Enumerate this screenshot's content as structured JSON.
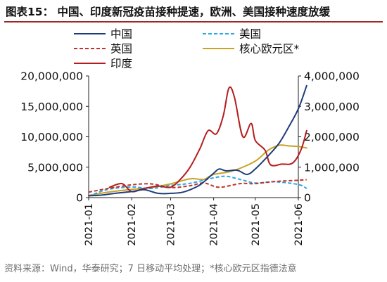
{
  "figure": {
    "title": "图表15：  中国、印度新冠疫苗接种提速，欧洲、美国接种速度放缓",
    "source": "资料来源：Wind，华泰研究；7 日移动平均处理；*核心欧元区指德法意"
  },
  "chart_data": {
    "type": "line",
    "x_ticks": [
      "2021-01",
      "2021-02",
      "2021-03",
      "2021-04",
      "2021-05",
      "2021-06"
    ],
    "y_left": {
      "range": [
        0,
        20000000
      ],
      "ticks": [
        "0",
        "5,000,000",
        "10,000,000",
        "15,000,000",
        "20,000,000"
      ]
    },
    "y_right": {
      "range": [
        0,
        4000000
      ],
      "ticks": [
        "0",
        "1,000,000",
        "2,000,000",
        "3,000,000",
        "4,000,000"
      ]
    },
    "legend_columns": 2,
    "series": [
      {
        "name": "中国",
        "axis": "left",
        "color": "#1f3c7a",
        "dash": "solid",
        "points": [
          [
            "2021-01-01",
            300000
          ],
          [
            "2021-01-10",
            400000
          ],
          [
            "2021-01-20",
            700000
          ],
          [
            "2021-02-01",
            1000000
          ],
          [
            "2021-02-10",
            1300000
          ],
          [
            "2021-02-20",
            700000
          ],
          [
            "2021-03-01",
            700000
          ],
          [
            "2021-03-10",
            900000
          ],
          [
            "2021-03-20",
            1800000
          ],
          [
            "2021-03-25",
            2600000
          ],
          [
            "2021-04-01",
            4000000
          ],
          [
            "2021-04-05",
            4700000
          ],
          [
            "2021-04-10",
            4400000
          ],
          [
            "2021-04-18",
            4500000
          ],
          [
            "2021-04-25",
            3800000
          ],
          [
            "2021-05-01",
            4700000
          ],
          [
            "2021-05-10",
            6800000
          ],
          [
            "2021-05-18",
            8900000
          ],
          [
            "2021-05-25",
            11600000
          ],
          [
            "2021-06-01",
            14600000
          ],
          [
            "2021-06-07",
            18400000
          ]
        ]
      },
      {
        "name": "美国",
        "axis": "right",
        "color": "#26a7e4",
        "dash": "dashed",
        "points": [
          [
            "2021-01-01",
            50000
          ],
          [
            "2021-01-15",
            270000
          ],
          [
            "2021-02-01",
            350000
          ],
          [
            "2021-02-15",
            300000
          ],
          [
            "2021-03-01",
            400000
          ],
          [
            "2021-03-15",
            470000
          ],
          [
            "2021-04-01",
            650000
          ],
          [
            "2021-04-10",
            700000
          ],
          [
            "2021-04-20",
            600000
          ],
          [
            "2021-05-01",
            480000
          ],
          [
            "2021-05-15",
            520000
          ],
          [
            "2021-06-01",
            430000
          ],
          [
            "2021-06-07",
            300000
          ]
        ]
      },
      {
        "name": "英国",
        "axis": "right",
        "color": "#c0322b",
        "dash": "dashed",
        "points": [
          [
            "2021-01-01",
            180000
          ],
          [
            "2021-01-15",
            300000
          ],
          [
            "2021-02-01",
            420000
          ],
          [
            "2021-02-15",
            450000
          ],
          [
            "2021-03-01",
            330000
          ],
          [
            "2021-03-15",
            390000
          ],
          [
            "2021-03-25",
            480000
          ],
          [
            "2021-04-05",
            340000
          ],
          [
            "2021-04-20",
            460000
          ],
          [
            "2021-05-01",
            460000
          ],
          [
            "2021-05-15",
            530000
          ],
          [
            "2021-06-01",
            570000
          ],
          [
            "2021-06-07",
            590000
          ]
        ]
      },
      {
        "name": "核心欧元区*",
        "axis": "right",
        "color": "#c9a227",
        "dash": "solid",
        "points": [
          [
            "2021-01-01",
            70000
          ],
          [
            "2021-01-15",
            180000
          ],
          [
            "2021-02-01",
            270000
          ],
          [
            "2021-02-15",
            330000
          ],
          [
            "2021-03-01",
            450000
          ],
          [
            "2021-03-15",
            620000
          ],
          [
            "2021-03-25",
            600000
          ],
          [
            "2021-04-01",
            760000
          ],
          [
            "2021-04-15",
            880000
          ],
          [
            "2021-05-01",
            1200000
          ],
          [
            "2021-05-10",
            1550000
          ],
          [
            "2021-05-18",
            1720000
          ],
          [
            "2021-05-25",
            1700000
          ],
          [
            "2021-06-01",
            1680000
          ],
          [
            "2021-06-07",
            1630000
          ]
        ]
      },
      {
        "name": "印度",
        "axis": "left",
        "color": "#b41e1e",
        "dash": "solid",
        "points": [
          [
            "2021-01-16",
            1700000
          ],
          [
            "2021-01-25",
            2300000
          ],
          [
            "2021-02-01",
            1000000
          ],
          [
            "2021-02-10",
            1500000
          ],
          [
            "2021-02-20",
            1900000
          ],
          [
            "2021-03-01",
            1700000
          ],
          [
            "2021-03-08",
            3000000
          ],
          [
            "2021-03-15",
            5000000
          ],
          [
            "2021-03-22",
            8000000
          ],
          [
            "2021-03-28",
            11000000
          ],
          [
            "2021-04-03",
            10500000
          ],
          [
            "2021-04-08",
            13500000
          ],
          [
            "2021-04-12",
            18000000
          ],
          [
            "2021-04-16",
            16500000
          ],
          [
            "2021-04-22",
            10000000
          ],
          [
            "2021-04-28",
            12200000
          ],
          [
            "2021-05-01",
            9400000
          ],
          [
            "2021-05-08",
            7800000
          ],
          [
            "2021-05-12",
            5400000
          ],
          [
            "2021-05-20",
            5500000
          ],
          [
            "2021-05-28",
            5700000
          ],
          [
            "2021-06-03",
            7900000
          ],
          [
            "2021-06-07",
            11000000
          ]
        ]
      }
    ]
  }
}
